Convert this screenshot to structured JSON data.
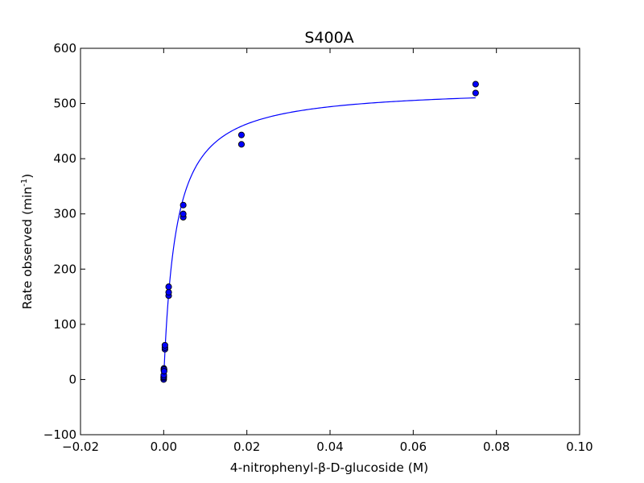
{
  "chart_data": {
    "type": "scatter",
    "title": "S400A",
    "xlabel": "4-nitrophenyl-β-D-glucoside (M)",
    "ylabel": "Rate observed (min",
    "ylabel_sup": "-1",
    "ylabel_end": ")",
    "xlim": [
      -0.02,
      0.1
    ],
    "ylim": [
      -100,
      600
    ],
    "xticks": [
      -0.02,
      0.0,
      0.02,
      0.04,
      0.06,
      0.08,
      0.1
    ],
    "xtick_labels": [
      "−0.02",
      "0.00",
      "0.02",
      "0.04",
      "0.06",
      "0.08",
      "0.10"
    ],
    "yticks": [
      -100,
      0,
      100,
      200,
      300,
      400,
      500,
      600
    ],
    "ytick_labels": [
      "−100",
      "0",
      "100",
      "200",
      "300",
      "400",
      "500",
      "600"
    ],
    "grid": false,
    "series": [
      {
        "kind": "points",
        "color": "#0000ff",
        "x": [
          0.0,
          0.0,
          1e-05,
          2e-05,
          5e-05,
          5e-05,
          0.0001,
          0.0001,
          0.0003,
          0.0003,
          0.0003,
          0.0012,
          0.0012,
          0.0012,
          0.0047,
          0.0047,
          0.0047,
          0.0187,
          0.0187,
          0.075,
          0.075
        ],
        "y": [
          0,
          3,
          5,
          8,
          17,
          20,
          18,
          15,
          55,
          58,
          62,
          152,
          158,
          168,
          294,
          300,
          316,
          426,
          443,
          519,
          535
        ]
      },
      {
        "kind": "fit",
        "color": "#0000ff",
        "vmax": 530,
        "km": 0.0029,
        "x_start": 0.0,
        "x_end": 0.075
      }
    ]
  }
}
